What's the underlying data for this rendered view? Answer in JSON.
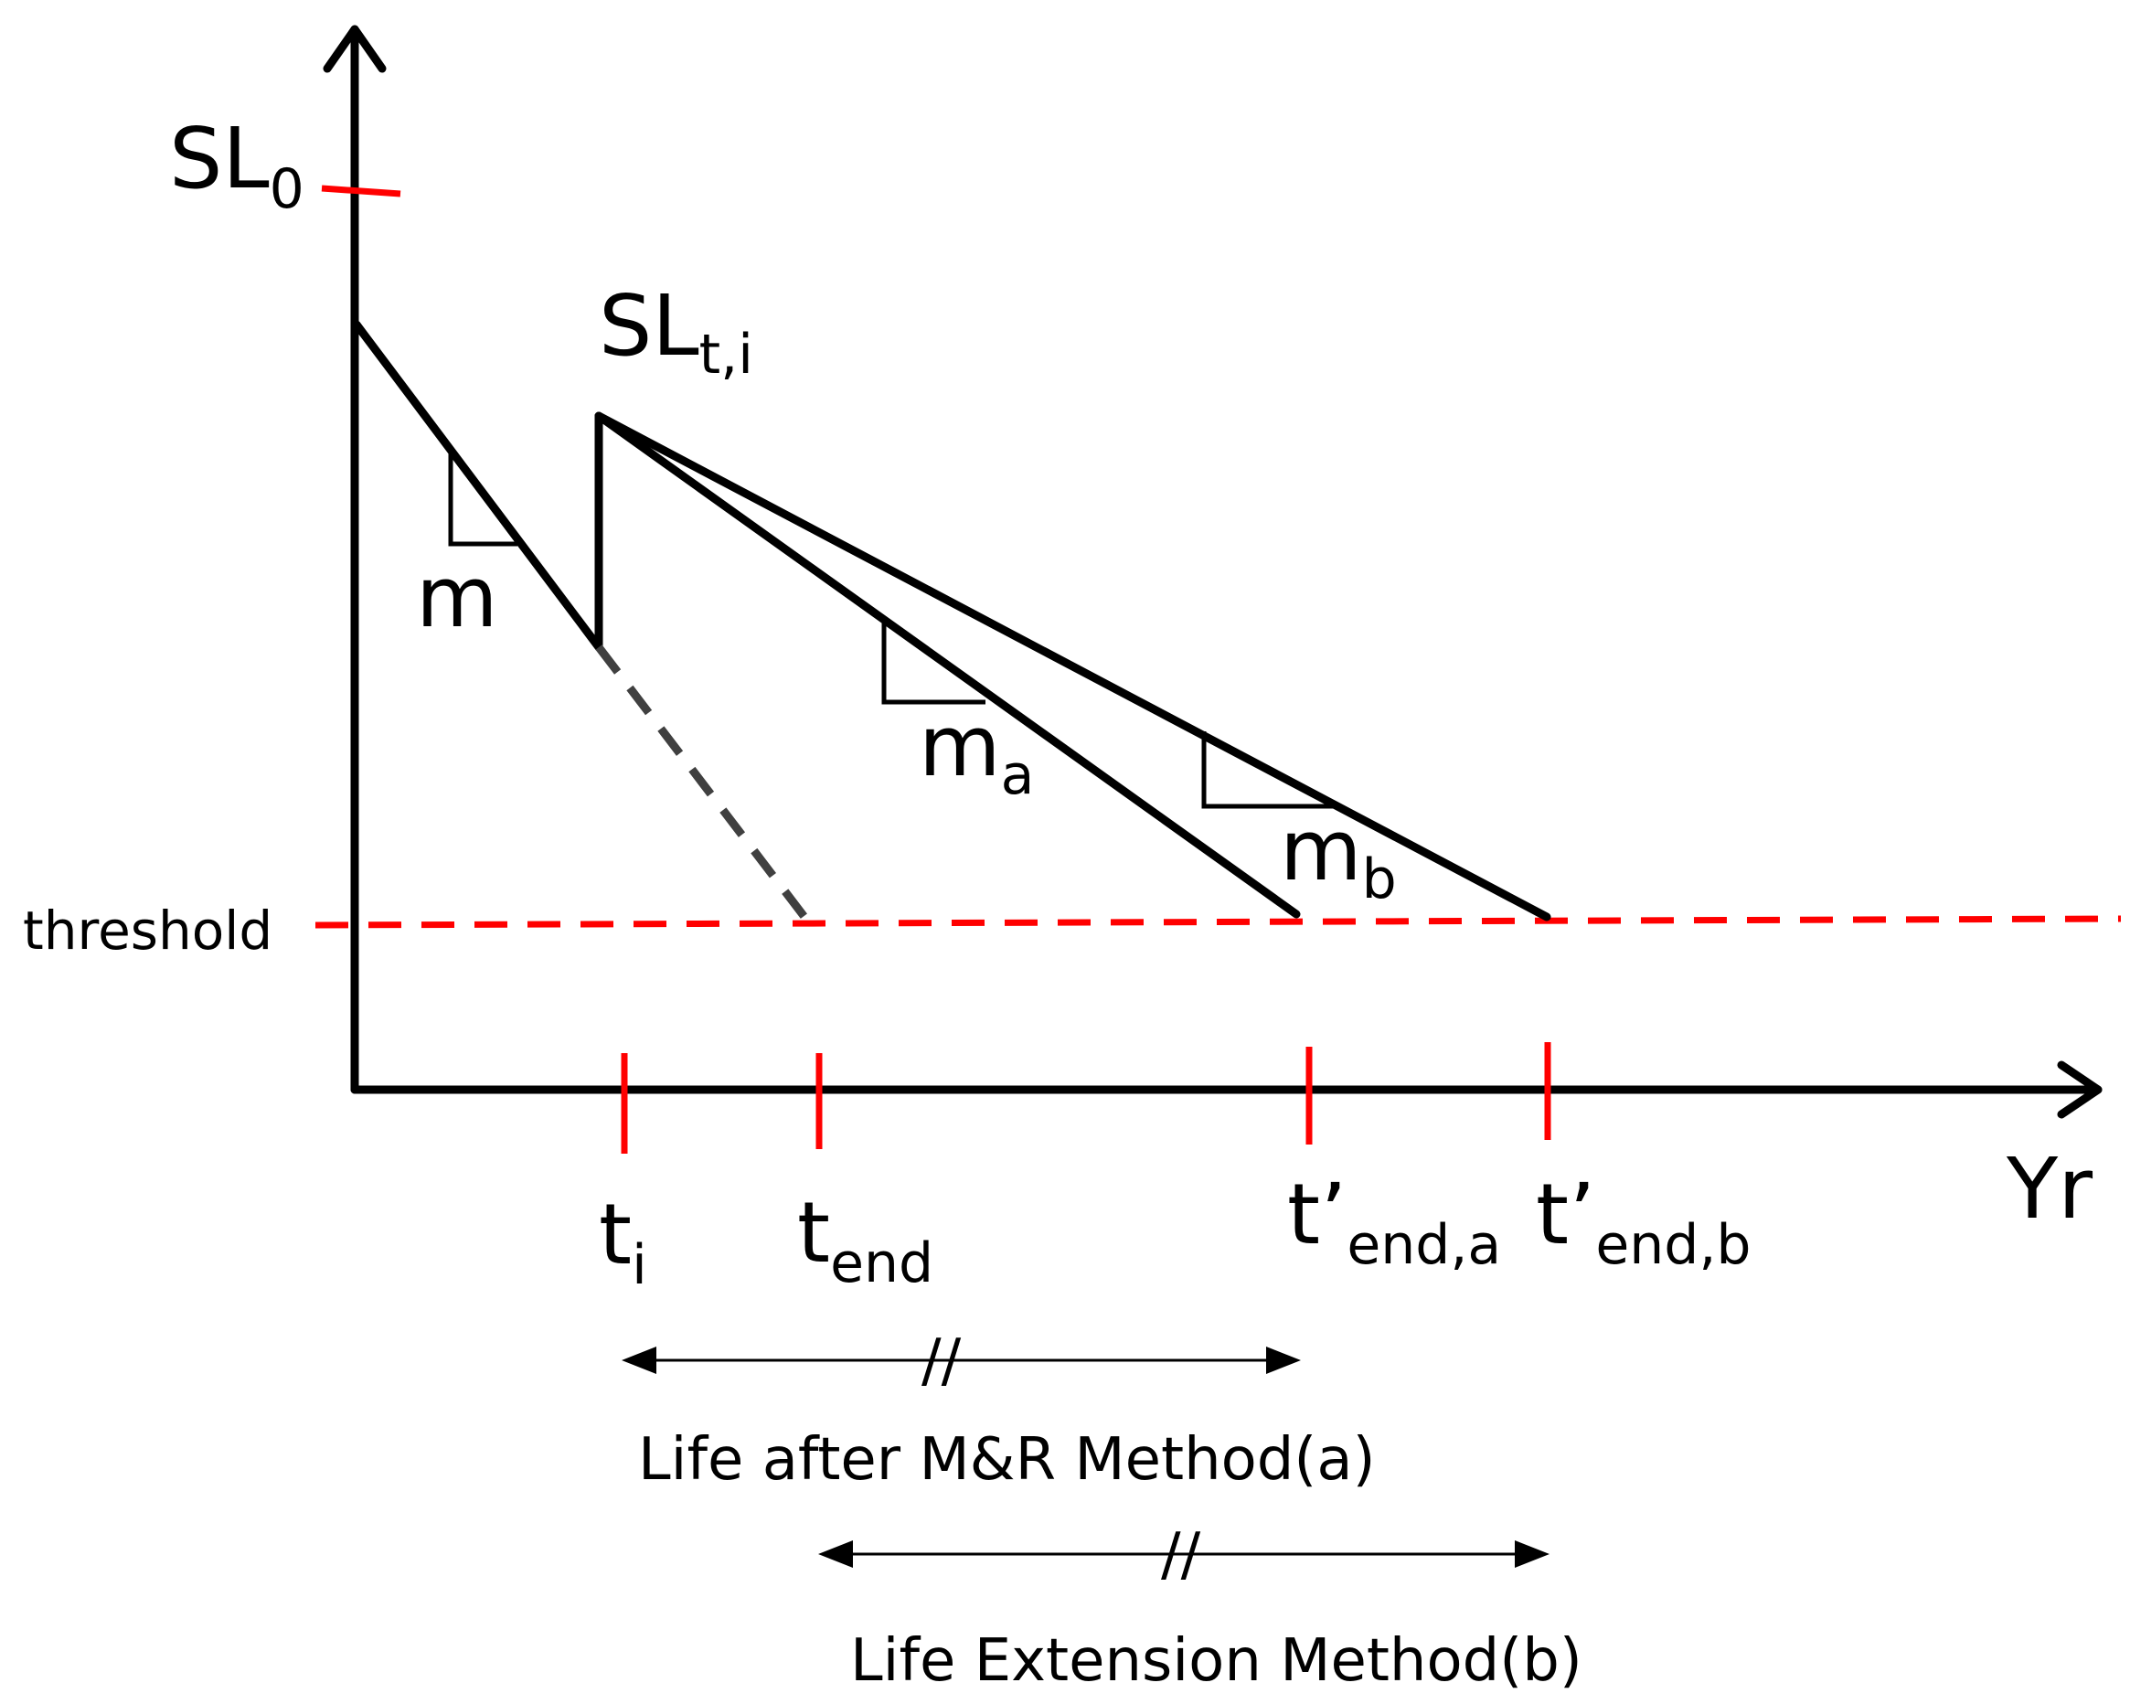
{
  "colors": {
    "axis": "#000000",
    "curve": "#000000",
    "threshold": "#ff0000",
    "tick": "#ff0000",
    "projection": "#404040"
  },
  "axes": {
    "x_label": "Yr",
    "y_label_main": "SL",
    "y_label_sub": "0"
  },
  "threshold_label": "threshold",
  "peak_label": {
    "main": "SL",
    "sub": "t,i"
  },
  "slopes": {
    "m": {
      "main": "m",
      "sub": ""
    },
    "ma": {
      "main": "m",
      "sub": "a"
    },
    "mb": {
      "main": "m",
      "sub": "b"
    }
  },
  "ticks": [
    {
      "main": "t",
      "sub": "i"
    },
    {
      "main": "t",
      "sub": "end"
    },
    {
      "main": "t’",
      "sub": "end,a"
    },
    {
      "main": "t’",
      "sub": "end,b"
    }
  ],
  "spans": {
    "a": {
      "label": "Life after M&R Method(a)",
      "break_mark": "//"
    },
    "b": {
      "label": "Life Extension Method(b)",
      "break_mark": "//"
    }
  }
}
